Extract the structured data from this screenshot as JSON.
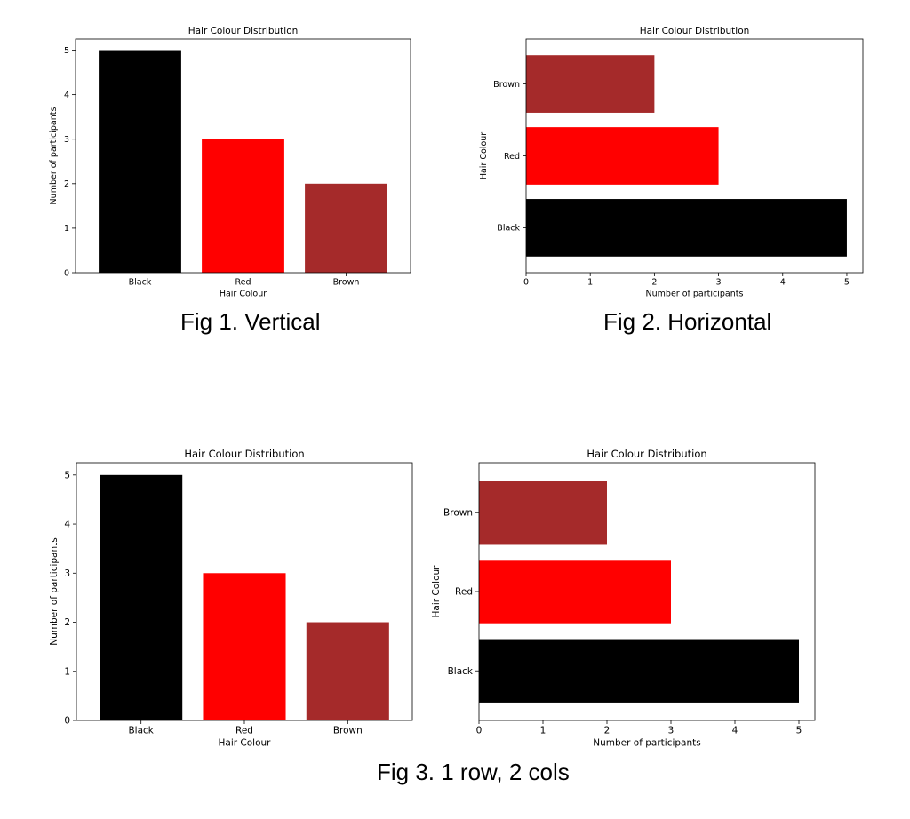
{
  "captions": {
    "fig1": "Fig 1. Vertical",
    "fig2": "Fig 2. Horizontal",
    "fig3": "Fig 3. 1 row, 2 cols"
  },
  "colors": {
    "Black": "#000000",
    "Red": "#ff0000",
    "Brown": "#a52a2a"
  },
  "chart_data": [
    {
      "type": "bar",
      "orientation": "vertical",
      "title": "Hair Colour Distribution",
      "categories": [
        "Black",
        "Red",
        "Brown"
      ],
      "values": [
        5,
        3,
        2
      ],
      "xlabel": "Hair Colour",
      "ylabel": "Number of participants",
      "ylim": [
        0,
        5.25
      ],
      "ticks": [
        "0",
        "1",
        "2",
        "3",
        "4",
        "5"
      ],
      "grid": false
    },
    {
      "type": "bar",
      "orientation": "horizontal",
      "title": "Hair Colour Distribution",
      "categories": [
        "Black",
        "Red",
        "Brown"
      ],
      "values": [
        5,
        3,
        2
      ],
      "xlabel": "Number of participants",
      "ylabel": "Hair Colour",
      "xlim": [
        0,
        5.25
      ],
      "ticks": [
        "0",
        "1",
        "2",
        "3",
        "4",
        "5"
      ],
      "grid": false
    },
    {
      "type": "bar",
      "orientation": "vertical",
      "title": "Hair Colour Distribution",
      "categories": [
        "Black",
        "Red",
        "Brown"
      ],
      "values": [
        5,
        3,
        2
      ],
      "xlabel": "Hair Colour",
      "ylabel": "Number of participants",
      "ylim": [
        0,
        5.25
      ],
      "ticks": [
        "0",
        "1",
        "2",
        "3",
        "4",
        "5"
      ],
      "grid": false
    },
    {
      "type": "bar",
      "orientation": "horizontal",
      "title": "Hair Colour Distribution",
      "categories": [
        "Black",
        "Red",
        "Brown"
      ],
      "values": [
        5,
        3,
        2
      ],
      "xlabel": "Number of participants",
      "ylabel": "Hair Colour",
      "xlim": [
        0,
        5.25
      ],
      "ticks": [
        "0",
        "1",
        "2",
        "3",
        "4",
        "5"
      ],
      "grid": false
    }
  ]
}
